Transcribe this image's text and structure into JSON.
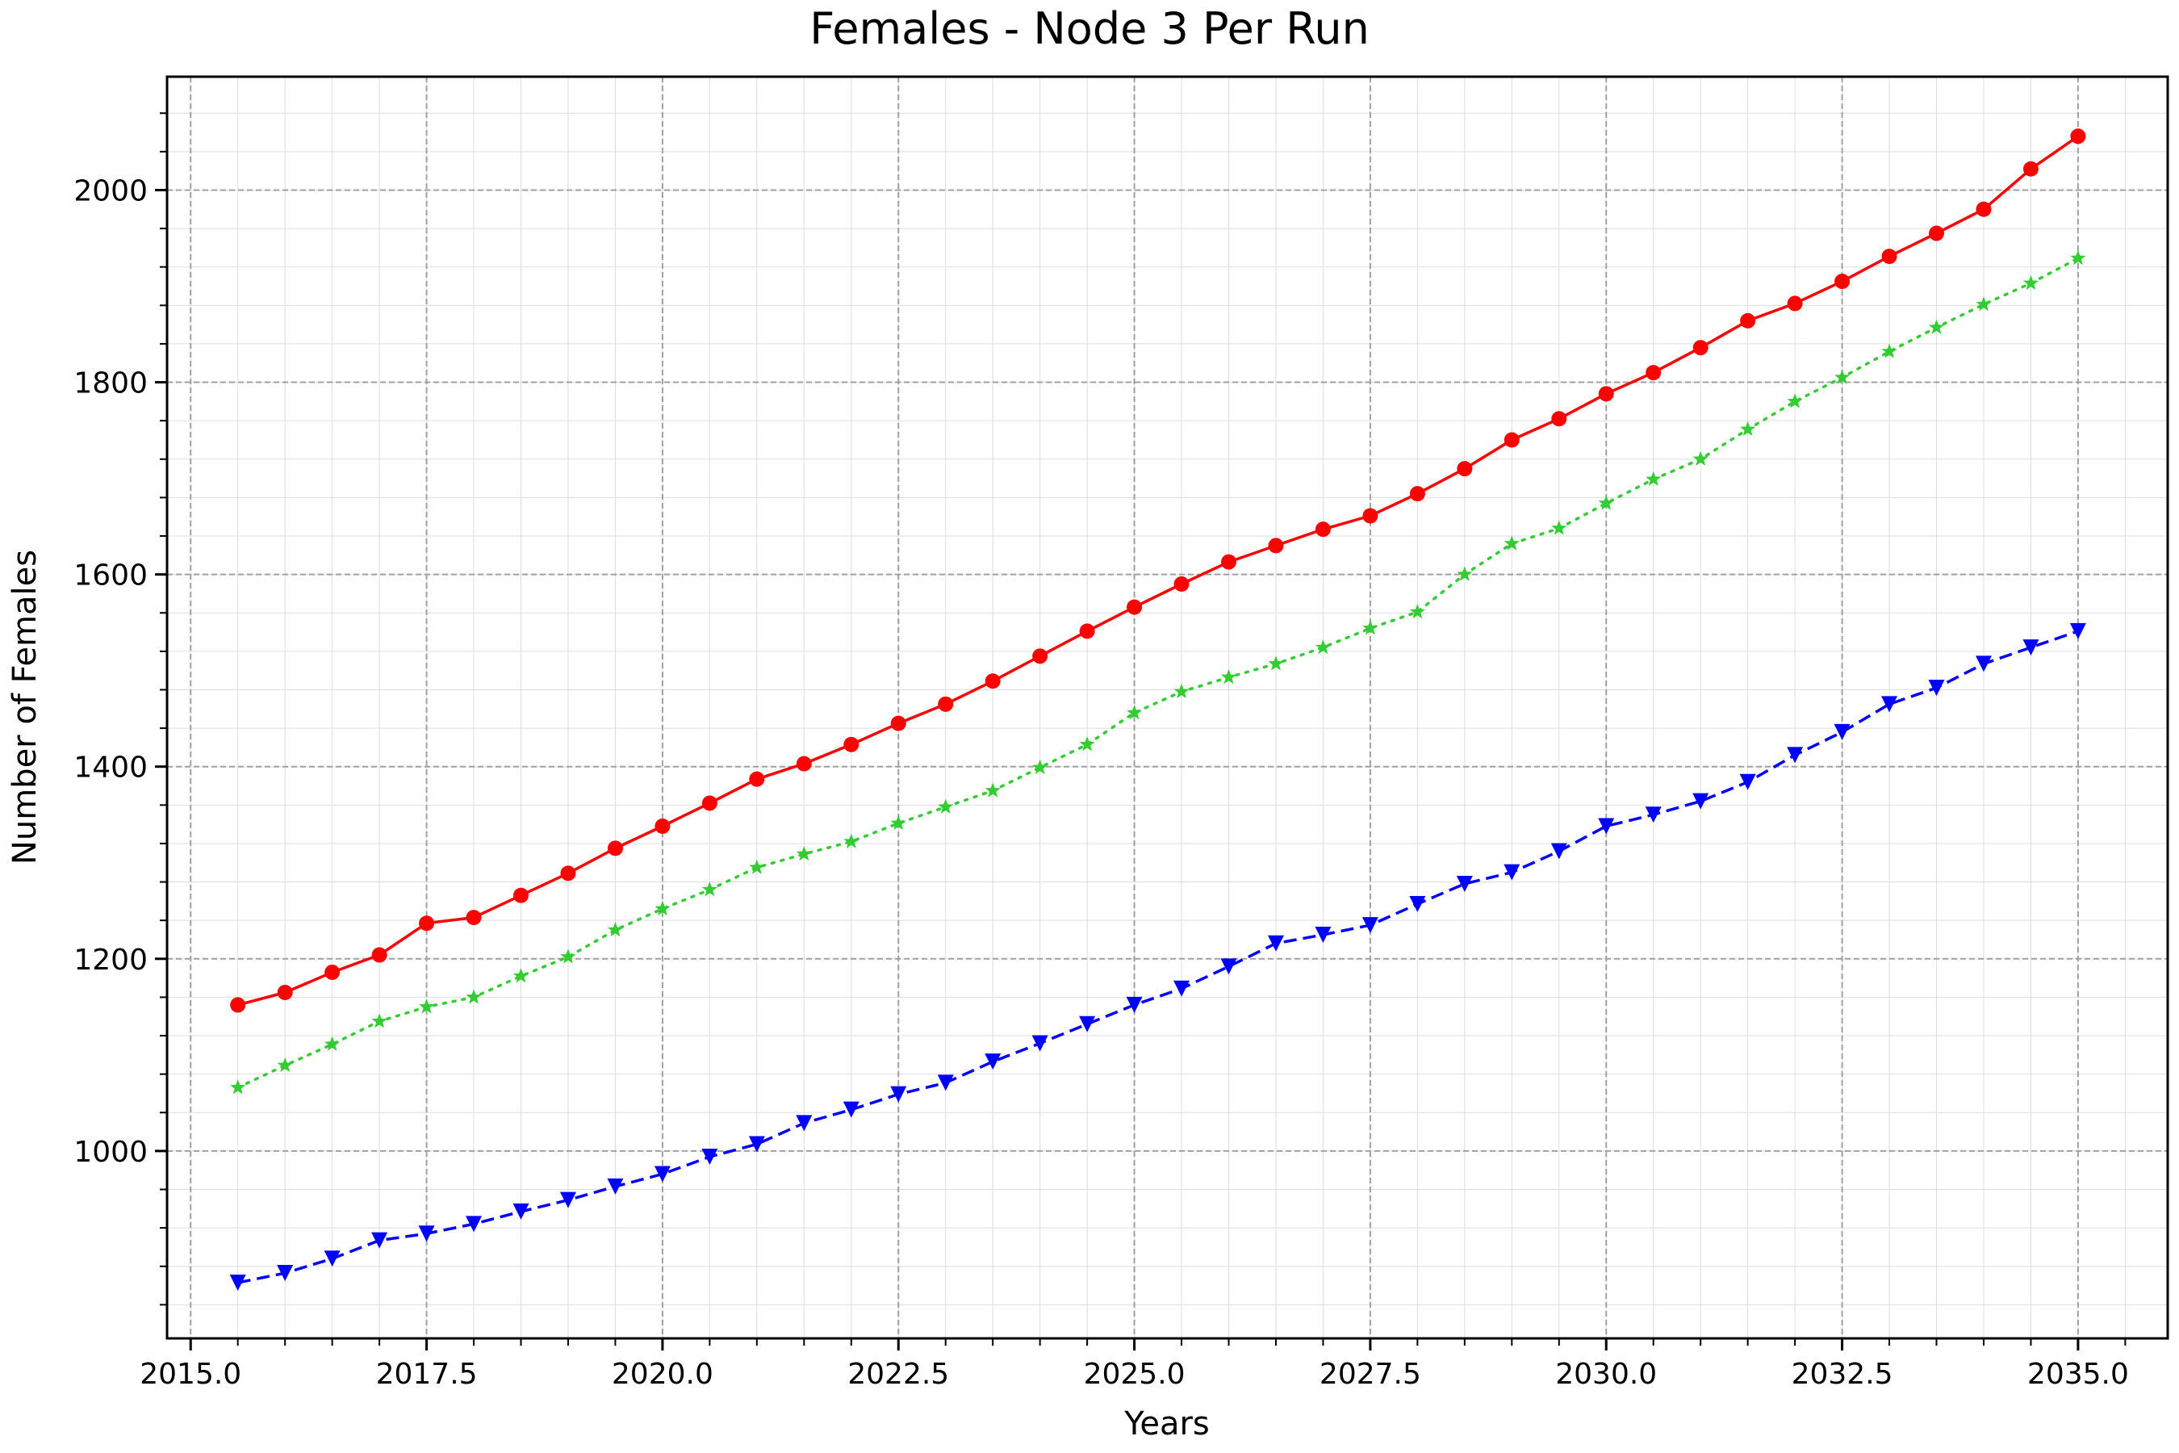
{
  "chart_data": {
    "type": "line",
    "title": "Females - Node 3 Per Run",
    "xlabel": "Years",
    "ylabel": "Number of Females",
    "xlim": [
      2014.75,
      2035.95
    ],
    "ylim": [
      805,
      2118
    ],
    "xticks": [
      2015.0,
      2017.5,
      2020.0,
      2022.5,
      2025.0,
      2027.5,
      2030.0,
      2032.5,
      2035.0
    ],
    "xtick_labels": [
      "2015.0",
      "2017.5",
      "2020.0",
      "2022.5",
      "2025.0",
      "2027.5",
      "2030.0",
      "2032.5",
      "2035.0"
    ],
    "yticks": [
      1000,
      1200,
      1400,
      1600,
      1800,
      2000
    ],
    "ytick_labels": [
      "1000",
      "1200",
      "1400",
      "1600",
      "1800",
      "2000"
    ],
    "grid": true,
    "legend": "none",
    "x": [
      2015.5,
      2016.0,
      2016.5,
      2017.0,
      2017.5,
      2018.0,
      2018.5,
      2019.0,
      2019.5,
      2020.0,
      2020.5,
      2021.0,
      2021.5,
      2022.0,
      2022.5,
      2023.0,
      2023.5,
      2024.0,
      2024.5,
      2025.0,
      2025.5,
      2026.0,
      2026.5,
      2027.0,
      2027.5,
      2028.0,
      2028.5,
      2029.0,
      2029.5,
      2030.0,
      2030.5,
      2031.0,
      2031.5,
      2032.0,
      2032.5,
      2033.0,
      2033.5,
      2034.0,
      2034.5,
      2035.0
    ],
    "series": [
      {
        "color": "#ff0000",
        "line_style": "solid",
        "marker": "circle",
        "values": [
          1152,
          1165,
          1186,
          1204,
          1237,
          1243,
          1266,
          1289,
          1315,
          1338,
          1362,
          1387,
          1403,
          1423,
          1445,
          1465,
          1489,
          1515,
          1541,
          1566,
          1590,
          1613,
          1630,
          1647,
          1661,
          1684,
          1710,
          1740,
          1762,
          1788,
          1810,
          1836,
          1864,
          1882,
          1905,
          1931,
          1955,
          1980,
          2022,
          2056
        ]
      },
      {
        "color": "#33cc33",
        "line_style": "dotted",
        "marker": "star",
        "values": [
          1066,
          1089,
          1111,
          1135,
          1150,
          1160,
          1182,
          1202,
          1230,
          1252,
          1272,
          1295,
          1309,
          1322,
          1341,
          1358,
          1375,
          1399,
          1423,
          1456,
          1478,
          1493,
          1507,
          1524,
          1544,
          1561,
          1600,
          1632,
          1648,
          1674,
          1699,
          1720,
          1751,
          1780,
          1805,
          1832,
          1857,
          1881,
          1903,
          1929
        ]
      },
      {
        "color": "#0000ff",
        "line_style": "dashed",
        "marker": "triangle-down",
        "values": [
          863,
          873,
          888,
          907,
          914,
          924,
          937,
          949,
          963,
          976,
          994,
          1007,
          1029,
          1043,
          1059,
          1071,
          1093,
          1112,
          1132,
          1152,
          1169,
          1192,
          1216,
          1225,
          1235,
          1257,
          1278,
          1290,
          1312,
          1338,
          1350,
          1364,
          1384,
          1412,
          1436,
          1465,
          1482,
          1507,
          1524,
          1541
        ]
      }
    ]
  }
}
